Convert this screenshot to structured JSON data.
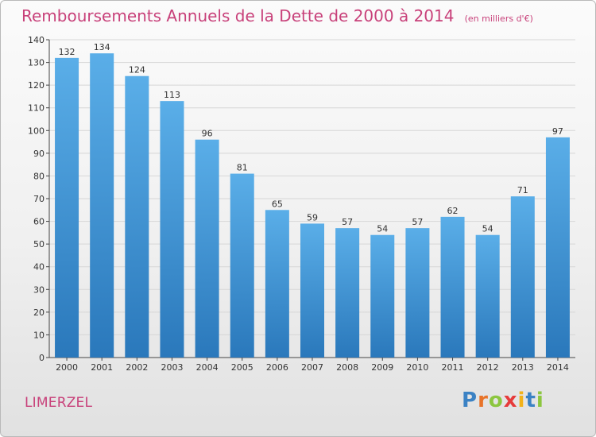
{
  "chart_data": {
    "type": "bar",
    "title": "Remboursements Annuels de la Dette de 2000 à 2014",
    "unit": "(en milliers d'€)",
    "categories": [
      "2000",
      "2001",
      "2002",
      "2003",
      "2004",
      "2005",
      "2006",
      "2007",
      "2008",
      "2009",
      "2010",
      "2011",
      "2012",
      "2013",
      "2014"
    ],
    "values": [
      132,
      134,
      124,
      113,
      96,
      81,
      65,
      59,
      57,
      54,
      57,
      62,
      54,
      71,
      97
    ],
    "xlabel": "",
    "ylabel": "",
    "ylim": [
      0,
      140
    ],
    "yticks": [
      0,
      10,
      20,
      30,
      40,
      50,
      60,
      70,
      80,
      90,
      100,
      110,
      120,
      130,
      140
    ],
    "grid": true,
    "legend": "none",
    "colors": {
      "bar_top": "#5aaee8",
      "bar_bottom": "#2a78bb",
      "title": "#c8417a"
    }
  },
  "footer": {
    "commune": "LIMERZEL",
    "logo_letters": [
      {
        "ch": "P",
        "color": "#3b82c4"
      },
      {
        "ch": "r",
        "color": "#e8742a"
      },
      {
        "ch": "o",
        "color": "#8cc63f"
      },
      {
        "ch": "x",
        "color": "#e63b3b"
      },
      {
        "ch": "i",
        "color": "#f2b21a"
      },
      {
        "ch": "t",
        "color": "#3b82c4"
      },
      {
        "ch": "i",
        "color": "#8cc63f"
      }
    ]
  }
}
